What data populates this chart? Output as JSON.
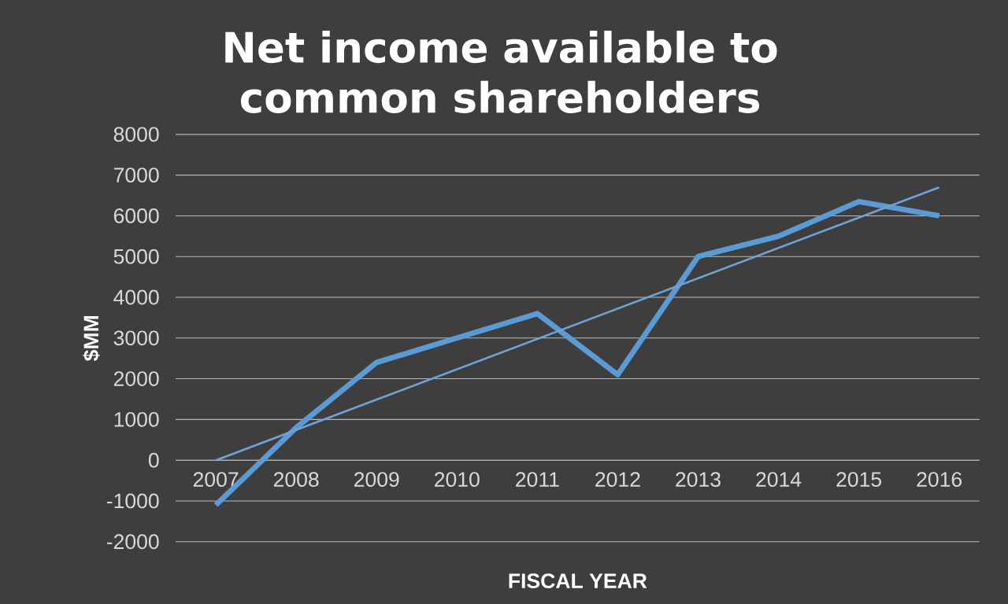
{
  "chart_data": {
    "type": "line",
    "title": "Net income available to common shareholders",
    "xlabel": "FISCAL YEAR",
    "ylabel": "$MM",
    "categories": [
      "2007",
      "2008",
      "2009",
      "2010",
      "2011",
      "2012",
      "2013",
      "2014",
      "2015",
      "2016"
    ],
    "series": [
      {
        "color": "#5b9bd5",
        "values": [
          -1100,
          800,
          2400,
          3000,
          3600,
          2100,
          5000,
          5500,
          6350,
          6000
        ]
      },
      {
        "type": "line",
        "color": "#6fa3d8",
        "values": [
          0,
          null,
          null,
          null,
          null,
          null,
          null,
          null,
          null,
          6700
        ]
      }
    ],
    "ylim": [
      -2000,
      8000
    ],
    "yticks": [
      -2000,
      -1000,
      0,
      1000,
      2000,
      3000,
      4000,
      5000,
      6000,
      7000,
      8000
    ],
    "grid": "y",
    "marker": "none",
    "line_style": "solid"
  }
}
